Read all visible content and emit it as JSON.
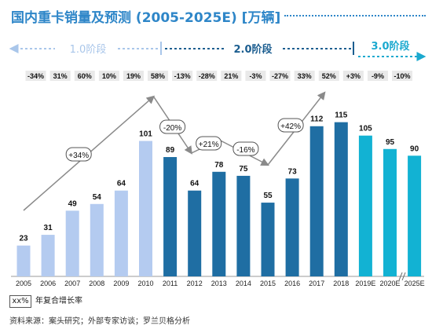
{
  "title": "国内重卡销量及预测 (2005-2025E) [万辆]",
  "phases": [
    {
      "label": "1.0阶段",
      "color": "#a9c6ea"
    },
    {
      "label": "2.0阶段",
      "color": "#1c5e90"
    },
    {
      "label": "3.0阶段",
      "color": "#1ba9cf"
    }
  ],
  "yoy_labels": [
    "-34%",
    "31%",
    "60%",
    "10%",
    "19%",
    "58%",
    "-13%",
    "-28%",
    "21%",
    "-3%",
    "-27%",
    "33%",
    "52%",
    "+3%",
    "-9%",
    "-10%"
  ],
  "trend_bubbles": [
    "+34%",
    "-20%",
    "+21%",
    "-16%",
    "+42%"
  ],
  "legend": {
    "box": "xx%",
    "text": "年复合增长率"
  },
  "source": "资料来源：案头研究；外部专家访谈；罗兰贝格分析",
  "colors": {
    "phase1": "#b4cbf0",
    "phase2": "#1f6ea3",
    "phase3": "#12b2d3",
    "arrow": "#8a8a8a"
  },
  "chart_data": {
    "type": "bar",
    "categories": [
      "2005",
      "2006",
      "2007",
      "2008",
      "2009",
      "2010",
      "2011",
      "2012",
      "2013",
      "2014",
      "2015",
      "2016",
      "2017",
      "2018",
      "2019E",
      "2020E",
      "2025E"
    ],
    "values": [
      23,
      31,
      49,
      54,
      64,
      101,
      89,
      64,
      78,
      75,
      55,
      73,
      112,
      115,
      105,
      95,
      90
    ],
    "phase_index": [
      0,
      0,
      0,
      0,
      0,
      0,
      1,
      1,
      1,
      1,
      1,
      1,
      1,
      1,
      2,
      2,
      2
    ],
    "ylim": [
      0,
      130
    ],
    "axis_break_before": "2025E"
  }
}
